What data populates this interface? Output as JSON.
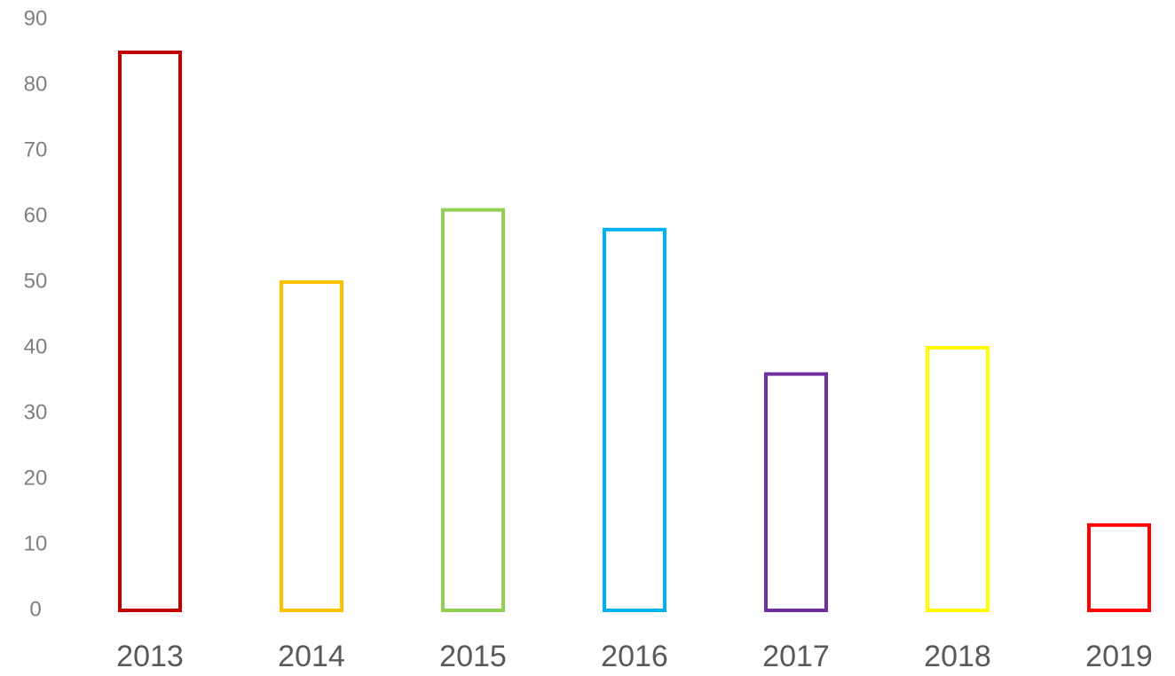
{
  "chart_data": {
    "type": "bar",
    "categories": [
      "2013",
      "2014",
      "2015",
      "2016",
      "2017",
      "2018",
      "2019"
    ],
    "values": [
      85,
      50,
      61,
      58,
      36,
      40,
      13
    ],
    "colors": [
      "#c00000",
      "#ffc000",
      "#92d050",
      "#00b0f0",
      "#7030a0",
      "#ffff00",
      "#ff0000"
    ],
    "fill": "none",
    "ylim": [
      0,
      90
    ],
    "yticks": [
      0,
      10,
      20,
      30,
      40,
      50,
      60,
      70,
      80,
      90
    ],
    "grid": false
  }
}
